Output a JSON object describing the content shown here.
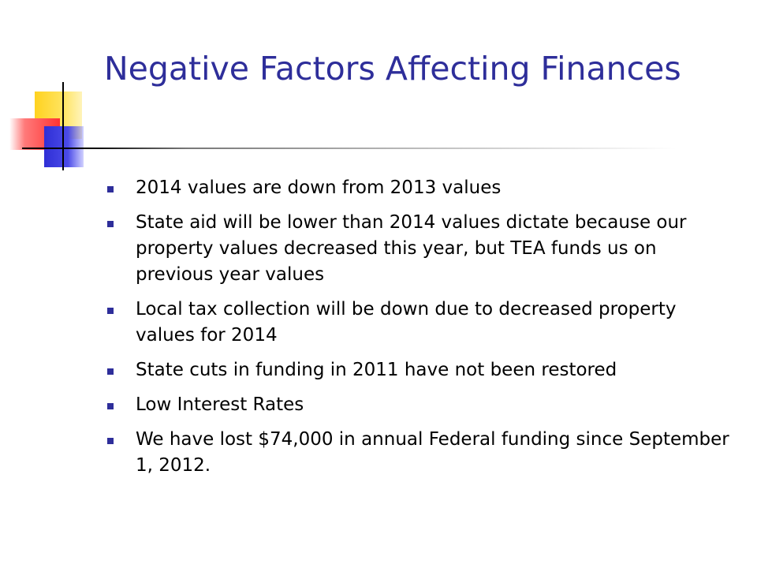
{
  "slide": {
    "title": "Negative Factors Affecting Finances",
    "bullets": [
      "2014 values are down from 2013 values",
      "State aid will be lower than 2014 values dictate because our property values decreased this year, but TEA funds us on previous year values",
      "Local tax collection will be down due to decreased property values for 2014",
      "State cuts in funding in 2011 have not been restored",
      "Low Interest Rates",
      "We have lost $74,000 in annual Federal funding since September 1, 2012."
    ]
  },
  "colors": {
    "title": "#2e2e9a",
    "bullet_marker": "#2e2e9a",
    "text": "#000000",
    "background": "#ffffff"
  }
}
